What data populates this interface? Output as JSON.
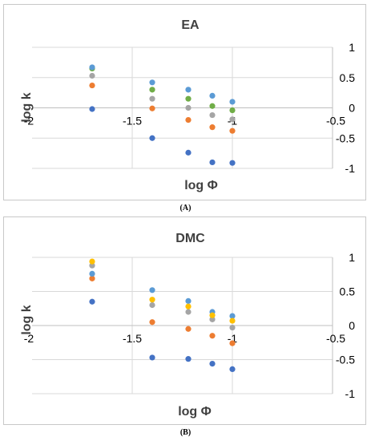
{
  "captions": [
    "(A)",
    "(B)"
  ],
  "chart_data": [
    {
      "type": "scatter",
      "title": "EA",
      "xlabel": "log Φ",
      "ylabel": "log k",
      "xlim": [
        -2,
        -0.5
      ],
      "ylim": [
        -1,
        1
      ],
      "x_ticks": [
        "-2",
        "-1.5",
        "-1",
        "-0.5"
      ],
      "y_ticks": [
        "1",
        "0.5",
        "0",
        "-0.5",
        "-1"
      ],
      "grid": true,
      "legend": "none",
      "series": [
        {
          "color": "#4472c4",
          "points": [
            [
              -1.7,
              -0.02
            ],
            [
              -1.4,
              -0.5
            ],
            [
              -1.22,
              -0.74
            ],
            [
              -1.1,
              -0.9
            ],
            [
              -1.0,
              -0.91
            ]
          ]
        },
        {
          "color": "#ed7d31",
          "points": [
            [
              -1.7,
              0.37
            ],
            [
              -1.4,
              -0.01
            ],
            [
              -1.22,
              -0.2
            ],
            [
              -1.1,
              -0.32
            ],
            [
              -1.0,
              -0.38
            ]
          ]
        },
        {
          "color": "#a5a5a5",
          "points": [
            [
              -1.7,
              0.53
            ],
            [
              -1.4,
              0.15
            ],
            [
              -1.22,
              0.0
            ],
            [
              -1.1,
              -0.12
            ],
            [
              -1.0,
              -0.19
            ]
          ]
        },
        {
          "color": "#70ad47",
          "points": [
            [
              -1.7,
              0.65
            ],
            [
              -1.4,
              0.3
            ],
            [
              -1.22,
              0.15
            ],
            [
              -1.1,
              0.03
            ],
            [
              -1.0,
              -0.04
            ]
          ]
        },
        {
          "color": "#5b9bd5",
          "points": [
            [
              -1.7,
              0.67
            ],
            [
              -1.4,
              0.42
            ],
            [
              -1.22,
              0.3
            ],
            [
              -1.1,
              0.2
            ],
            [
              -1.0,
              0.1
            ]
          ]
        }
      ]
    },
    {
      "type": "scatter",
      "title": "DMC",
      "xlabel": "log Φ",
      "ylabel": "log k",
      "xlim": [
        -2,
        -0.5
      ],
      "ylim": [
        -1,
        1
      ],
      "x_ticks": [
        "-2",
        "-1.5",
        "-1",
        "-0.5"
      ],
      "y_ticks": [
        "1",
        "0.5",
        "0",
        "-0.5",
        "-1"
      ],
      "grid": true,
      "legend": "none",
      "series": [
        {
          "color": "#4472c4",
          "points": [
            [
              -1.7,
              0.35
            ],
            [
              -1.4,
              -0.47
            ],
            [
              -1.22,
              -0.49
            ],
            [
              -1.1,
              -0.56
            ],
            [
              -1.0,
              -0.64
            ]
          ]
        },
        {
          "color": "#ed7d31",
          "points": [
            [
              -1.7,
              0.69
            ],
            [
              -1.4,
              0.05
            ],
            [
              -1.22,
              -0.05
            ],
            [
              -1.1,
              -0.15
            ],
            [
              -1.0,
              -0.26
            ]
          ]
        },
        {
          "color": "#5b9bd5",
          "points": [
            [
              -1.7,
              0.76
            ],
            [
              -1.4,
              0.52
            ],
            [
              -1.22,
              0.36
            ],
            [
              -1.1,
              0.2
            ],
            [
              -1.0,
              0.14
            ]
          ]
        },
        {
          "color": "#a5a5a5",
          "points": [
            [
              -1.7,
              0.88
            ],
            [
              -1.4,
              0.3
            ],
            [
              -1.22,
              0.2
            ],
            [
              -1.1,
              0.09
            ],
            [
              -1.0,
              -0.03
            ]
          ]
        },
        {
          "color": "#ffc000",
          "points": [
            [
              -1.7,
              0.94
            ],
            [
              -1.4,
              0.38
            ],
            [
              -1.22,
              0.28
            ],
            [
              -1.1,
              0.15
            ],
            [
              -1.0,
              0.07
            ]
          ]
        }
      ]
    }
  ]
}
